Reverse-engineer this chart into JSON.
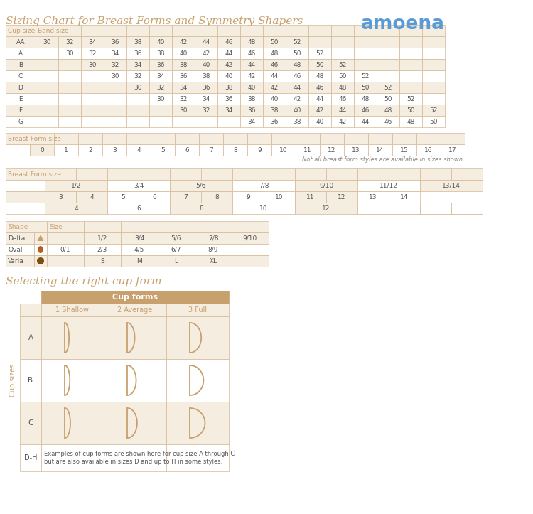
{
  "title": "Sizing Chart for Breast Forms and Symmetry Shapers",
  "brand": "amoena",
  "title_color": "#c8a06e",
  "brand_color": "#5b9bd5",
  "bg_color": "#ffffff",
  "header_color": "#f5ede0",
  "border_color": "#d4b896",
  "text_color": "#555555",
  "cup_sizes": [
    "AA",
    "A",
    "B",
    "C",
    "D",
    "E",
    "F",
    "G"
  ],
  "band_data": {
    "AA": [
      "30",
      "32",
      "34",
      "36",
      "38",
      "40",
      "42",
      "44",
      "46",
      "48",
      "50",
      "52",
      "",
      "",
      "",
      "",
      "",
      ""
    ],
    "A": [
      "",
      "30",
      "32",
      "34",
      "36",
      "38",
      "40",
      "42",
      "44",
      "46",
      "48",
      "50",
      "52",
      "",
      "",
      "",
      "",
      ""
    ],
    "B": [
      "",
      "",
      "30",
      "32",
      "34",
      "36",
      "38",
      "40",
      "42",
      "44",
      "46",
      "48",
      "50",
      "52",
      "",
      "",
      "",
      ""
    ],
    "C": [
      "",
      "",
      "",
      "30",
      "32",
      "34",
      "36",
      "38",
      "40",
      "42",
      "44",
      "46",
      "48",
      "50",
      "52",
      "",
      "",
      ""
    ],
    "D": [
      "",
      "",
      "",
      "",
      "30",
      "32",
      "34",
      "36",
      "38",
      "40",
      "42",
      "44",
      "46",
      "48",
      "50",
      "52",
      "",
      ""
    ],
    "E": [
      "",
      "",
      "",
      "",
      "",
      "30",
      "32",
      "34",
      "36",
      "38",
      "40",
      "42",
      "44",
      "46",
      "48",
      "50",
      "52",
      ""
    ],
    "F": [
      "",
      "",
      "",
      "",
      "",
      "",
      "30",
      "32",
      "34",
      "36",
      "38",
      "40",
      "42",
      "44",
      "46",
      "48",
      "50",
      "52"
    ],
    "G": [
      "",
      "",
      "",
      "",
      "",
      "",
      "",
      "",
      "",
      "34",
      "36",
      "38",
      "40",
      "42",
      "44",
      "46",
      "48",
      "50"
    ]
  },
  "bf_sizes1": [
    "0",
    "1",
    "2",
    "3",
    "4",
    "5",
    "6",
    "7",
    "8",
    "9",
    "10",
    "11",
    "12",
    "13",
    "14",
    "15",
    "16",
    "17"
  ],
  "note1": "Not all breast form styles are available in sizes shown.",
  "bf_row1": [
    "1/2",
    "3/4",
    "5/6",
    "7/8",
    "9/10",
    "11/12",
    "13/14"
  ],
  "bf_row2": [
    "3",
    "4",
    "5",
    "6",
    "7",
    "8",
    "9",
    "10",
    "11",
    "12",
    "13",
    "14"
  ],
  "bf_row3": [
    "4",
    "6",
    "8",
    "10",
    "12"
  ],
  "shapes": [
    "Delta",
    "Oval",
    "Varia"
  ],
  "shape_sizes": {
    "Delta": [
      "",
      "1/2",
      "3/4",
      "5/6",
      "7/8",
      "9/10"
    ],
    "Oval": [
      "0/1",
      "2/3",
      "4/5",
      "6/7",
      "8/9",
      ""
    ],
    "Varia": [
      "",
      "S",
      "M",
      "L",
      "XL",
      ""
    ]
  },
  "cup_form_title": "Selecting the right cup form",
  "cup_form_subtitle": "Cup forms",
  "cup_cols": [
    "1 Shallow",
    "2 Average",
    "3 Full"
  ],
  "cup_rows": [
    "A",
    "B",
    "C",
    "D-H"
  ],
  "cup_note": "Examples of cup forms are shown here for cup size A through C\nbut are also available in sizes D and up to H in some styles."
}
